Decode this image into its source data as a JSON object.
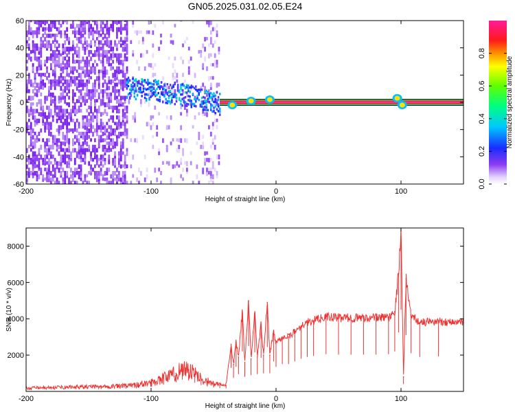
{
  "title": "GN05.2025.031.02.05.E24",
  "chart_data": [
    {
      "type": "heatmap",
      "xlabel": "Height of straight line (km)",
      "ylabel": "Frequency (Hz)",
      "xlim": [
        -200,
        150
      ],
      "ylim": [
        -60,
        60
      ],
      "xticks": [
        -200,
        -100,
        0,
        100
      ],
      "xtick_labels": [
        "-200",
        "-100",
        "0",
        "100"
      ],
      "yticks": [
        -60,
        -40,
        -20,
        0,
        20,
        40,
        60
      ],
      "ytick_labels": [
        "-60",
        "-40",
        "-20",
        "0",
        "20",
        "40",
        "60"
      ],
      "colorbar": {
        "label": "Normalized spectral amplitude",
        "range": [
          0,
          1
        ],
        "ticks": [
          0.0,
          0.2,
          0.4,
          0.6,
          0.8
        ],
        "tick_labels": [
          "0.0",
          "0.2",
          "0.4",
          "0.6",
          "0.8"
        ],
        "colormap": "rainbow (white-violet-blue-cyan-green-yellow-orange-red-magenta)"
      },
      "features": {
        "noise_region_x": [
          -200,
          -120
        ],
        "sloped_band": [
          {
            "x": -120,
            "freq": 10
          },
          {
            "x": -90,
            "freq": 7
          },
          {
            "x": -70,
            "freq": 4
          },
          {
            "x": -55,
            "freq": 1
          },
          {
            "x": -45,
            "freq": -2
          }
        ],
        "residual_trail_x": [
          -60,
          -48
        ],
        "steady_line_freq": 0,
        "steady_line_x": [
          -45,
          150
        ],
        "bright_spots": [
          {
            "x": -35,
            "freq": -2
          },
          {
            "x": -20,
            "freq": 1
          },
          {
            "x": -5,
            "freq": 2
          },
          {
            "x": 97,
            "freq": 3
          },
          {
            "x": 101,
            "freq": -2
          }
        ]
      }
    },
    {
      "type": "line",
      "xlabel": "Height of straight line (km)",
      "ylabel": "SNR (10 * v/v)",
      "xlim": [
        -200,
        150
      ],
      "ylim": [
        0,
        9000
      ],
      "xticks": [
        -200,
        -100,
        0,
        100
      ],
      "xtick_labels": [
        "-200",
        "-100",
        "0",
        "100"
      ],
      "yticks": [
        2000,
        4000,
        6000,
        8000
      ],
      "ytick_labels": [
        "2000",
        "4000",
        "6000",
        "8000"
      ],
      "color": "#ee3333",
      "series": [
        {
          "x": [
            -200,
            -180,
            -160,
            -140,
            -120,
            -110,
            -100,
            -90,
            -80,
            -75,
            -70,
            -65,
            -60,
            -55,
            -50,
            -45,
            -40,
            -36,
            -34,
            -32,
            -30,
            -27,
            -25,
            -22,
            -20,
            -17,
            -15,
            -12,
            -10,
            -7,
            -5,
            -2,
            0,
            5,
            10,
            15,
            20,
            25,
            30,
            40,
            50,
            60,
            70,
            80,
            90,
            95,
            98,
            100,
            102,
            104,
            108,
            115,
            130,
            150
          ],
          "y": [
            180,
            210,
            240,
            260,
            300,
            380,
            480,
            750,
            1000,
            1300,
            1200,
            950,
            700,
            550,
            420,
            360,
            330,
            2600,
            1500,
            2700,
            1900,
            4400,
            1600,
            5000,
            1800,
            4300,
            1900,
            3700,
            2000,
            4900,
            2000,
            3300,
            2700,
            3000,
            3000,
            3300,
            3600,
            3800,
            3900,
            4100,
            4050,
            4050,
            4050,
            4050,
            4100,
            4400,
            6500,
            9000,
            800,
            6200,
            4200,
            3800,
            3850,
            3800
          ]
        }
      ]
    }
  ]
}
